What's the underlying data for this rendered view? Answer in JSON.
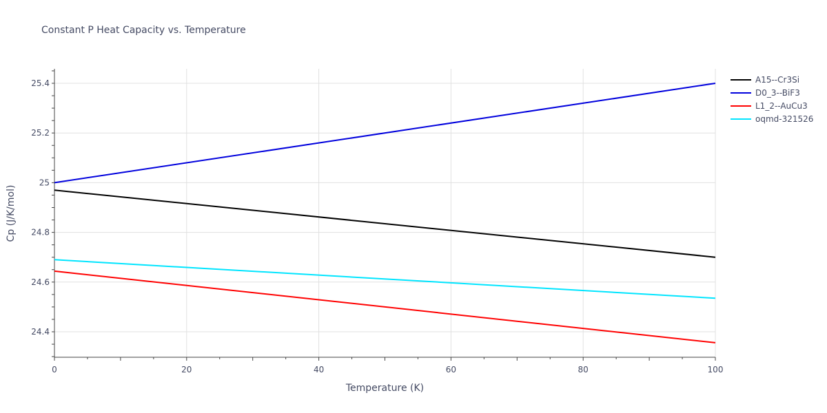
{
  "chart_data": {
    "type": "line",
    "title": "Constant P Heat Capacity vs. Temperature",
    "xlabel": "Temperature (K)",
    "ylabel": "Cp (J/K/mol)",
    "xlim": [
      0,
      100
    ],
    "ylim": [
      24.3,
      25.46
    ],
    "xticks": [
      "0",
      "20",
      "40",
      "60",
      "80",
      "100"
    ],
    "yticks": [
      "24.4",
      "24.6",
      "24.8",
      "25",
      "25.2",
      "25.4"
    ],
    "grid": true,
    "legend_position": "top-right outside",
    "x": [
      0,
      100
    ],
    "series": [
      {
        "name": "A15--Cr3Si",
        "color": "#000000",
        "values": [
          24.97,
          24.7
        ]
      },
      {
        "name": "D0_3--BiF3",
        "color": "#0000dd",
        "values": [
          25.0,
          25.4
        ]
      },
      {
        "name": "L1_2--AuCu3",
        "color": "#ff0000",
        "values": [
          24.644,
          24.356
        ]
      },
      {
        "name": "oqmd-321526",
        "color": "#00e5ff",
        "values": [
          24.69,
          24.535
        ]
      }
    ]
  }
}
